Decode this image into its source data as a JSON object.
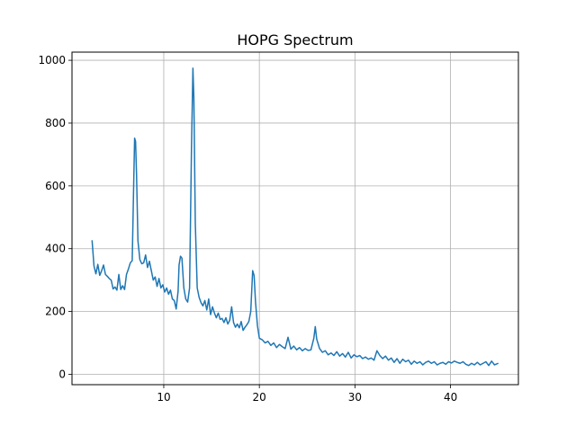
{
  "chart_data": {
    "type": "line",
    "title": "HOPG Spectrum",
    "xlabel": "",
    "ylabel": "",
    "xlim": [
      0.4,
      47.1
    ],
    "ylim": [
      -33,
      1026
    ],
    "x_ticks": [
      10,
      20,
      30,
      40
    ],
    "y_ticks": [
      0,
      200,
      400,
      600,
      800,
      1000
    ],
    "grid": true,
    "legend": "none",
    "series": [
      {
        "color": "#1f77b4",
        "points": [
          [
            2.5,
            427
          ],
          [
            2.7,
            345
          ],
          [
            2.9,
            320
          ],
          [
            3.1,
            350
          ],
          [
            3.3,
            315
          ],
          [
            3.5,
            330
          ],
          [
            3.7,
            348
          ],
          [
            3.9,
            318
          ],
          [
            4.1,
            312
          ],
          [
            4.3,
            305
          ],
          [
            4.5,
            300
          ],
          [
            4.7,
            272
          ],
          [
            4.9,
            278
          ],
          [
            5.1,
            268
          ],
          [
            5.3,
            318
          ],
          [
            5.5,
            270
          ],
          [
            5.7,
            282
          ],
          [
            5.9,
            270
          ],
          [
            6.1,
            318
          ],
          [
            6.3,
            335
          ],
          [
            6.5,
            355
          ],
          [
            6.7,
            362
          ],
          [
            6.85,
            600
          ],
          [
            6.95,
            752
          ],
          [
            7.05,
            742
          ],
          [
            7.15,
            640
          ],
          [
            7.3,
            425
          ],
          [
            7.5,
            365
          ],
          [
            7.7,
            352
          ],
          [
            7.9,
            355
          ],
          [
            8.1,
            380
          ],
          [
            8.3,
            340
          ],
          [
            8.5,
            360
          ],
          [
            8.7,
            330
          ],
          [
            8.9,
            300
          ],
          [
            9.1,
            310
          ],
          [
            9.3,
            280
          ],
          [
            9.5,
            305
          ],
          [
            9.7,
            275
          ],
          [
            9.9,
            285
          ],
          [
            10.1,
            262
          ],
          [
            10.3,
            275
          ],
          [
            10.5,
            255
          ],
          [
            10.7,
            268
          ],
          [
            10.9,
            240
          ],
          [
            11.1,
            235
          ],
          [
            11.3,
            208
          ],
          [
            11.5,
            265
          ],
          [
            11.6,
            348
          ],
          [
            11.75,
            376
          ],
          [
            11.9,
            370
          ],
          [
            12.1,
            275
          ],
          [
            12.3,
            240
          ],
          [
            12.5,
            230
          ],
          [
            12.7,
            275
          ],
          [
            12.9,
            720
          ],
          [
            13.05,
            975
          ],
          [
            13.15,
            880
          ],
          [
            13.3,
            480
          ],
          [
            13.5,
            275
          ],
          [
            13.7,
            245
          ],
          [
            13.9,
            228
          ],
          [
            14.1,
            218
          ],
          [
            14.3,
            235
          ],
          [
            14.5,
            205
          ],
          [
            14.7,
            240
          ],
          [
            14.9,
            190
          ],
          [
            15.1,
            215
          ],
          [
            15.3,
            195
          ],
          [
            15.5,
            180
          ],
          [
            15.7,
            195
          ],
          [
            15.9,
            175
          ],
          [
            16.1,
            178
          ],
          [
            16.3,
            165
          ],
          [
            16.5,
            180
          ],
          [
            16.7,
            160
          ],
          [
            16.9,
            172
          ],
          [
            17.1,
            215
          ],
          [
            17.3,
            165
          ],
          [
            17.5,
            150
          ],
          [
            17.7,
            160
          ],
          [
            17.9,
            148
          ],
          [
            18.1,
            168
          ],
          [
            18.3,
            140
          ],
          [
            18.5,
            150
          ],
          [
            18.7,
            158
          ],
          [
            18.9,
            168
          ],
          [
            19.1,
            200
          ],
          [
            19.3,
            330
          ],
          [
            19.45,
            315
          ],
          [
            19.6,
            230
          ],
          [
            19.8,
            155
          ],
          [
            20.0,
            115
          ],
          [
            20.3,
            110
          ],
          [
            20.6,
            100
          ],
          [
            20.9,
            105
          ],
          [
            21.2,
            92
          ],
          [
            21.5,
            100
          ],
          [
            21.8,
            85
          ],
          [
            22.1,
            95
          ],
          [
            22.4,
            88
          ],
          [
            22.7,
            82
          ],
          [
            23.0,
            118
          ],
          [
            23.3,
            80
          ],
          [
            23.6,
            90
          ],
          [
            23.9,
            78
          ],
          [
            24.2,
            85
          ],
          [
            24.5,
            75
          ],
          [
            24.8,
            82
          ],
          [
            25.1,
            76
          ],
          [
            25.4,
            78
          ],
          [
            25.7,
            115
          ],
          [
            25.85,
            152
          ],
          [
            26.0,
            112
          ],
          [
            26.3,
            82
          ],
          [
            26.6,
            70
          ],
          [
            26.9,
            75
          ],
          [
            27.2,
            62
          ],
          [
            27.5,
            68
          ],
          [
            27.8,
            60
          ],
          [
            28.1,
            72
          ],
          [
            28.4,
            58
          ],
          [
            28.7,
            66
          ],
          [
            29.0,
            55
          ],
          [
            29.3,
            70
          ],
          [
            29.6,
            52
          ],
          [
            29.9,
            62
          ],
          [
            30.2,
            56
          ],
          [
            30.5,
            60
          ],
          [
            30.8,
            50
          ],
          [
            31.1,
            55
          ],
          [
            31.4,
            48
          ],
          [
            31.7,
            52
          ],
          [
            32.0,
            45
          ],
          [
            32.3,
            75
          ],
          [
            32.6,
            60
          ],
          [
            32.9,
            50
          ],
          [
            33.2,
            58
          ],
          [
            33.5,
            45
          ],
          [
            33.8,
            52
          ],
          [
            34.1,
            38
          ],
          [
            34.4,
            50
          ],
          [
            34.7,
            35
          ],
          [
            35.0,
            48
          ],
          [
            35.3,
            40
          ],
          [
            35.6,
            45
          ],
          [
            35.9,
            32
          ],
          [
            36.2,
            42
          ],
          [
            36.5,
            35
          ],
          [
            36.8,
            40
          ],
          [
            37.1,
            30
          ],
          [
            37.4,
            38
          ],
          [
            37.7,
            42
          ],
          [
            38.0,
            35
          ],
          [
            38.3,
            40
          ],
          [
            38.6,
            30
          ],
          [
            38.9,
            35
          ],
          [
            39.2,
            38
          ],
          [
            39.5,
            32
          ],
          [
            39.8,
            40
          ],
          [
            40.1,
            36
          ],
          [
            40.4,
            42
          ],
          [
            40.7,
            38
          ],
          [
            41.0,
            35
          ],
          [
            41.3,
            40
          ],
          [
            41.6,
            32
          ],
          [
            41.9,
            28
          ],
          [
            42.2,
            35
          ],
          [
            42.5,
            30
          ],
          [
            42.8,
            38
          ],
          [
            43.1,
            30
          ],
          [
            43.4,
            35
          ],
          [
            43.7,
            40
          ],
          [
            44.0,
            28
          ],
          [
            44.3,
            42
          ],
          [
            44.6,
            30
          ],
          [
            45.0,
            35
          ]
        ]
      }
    ]
  }
}
